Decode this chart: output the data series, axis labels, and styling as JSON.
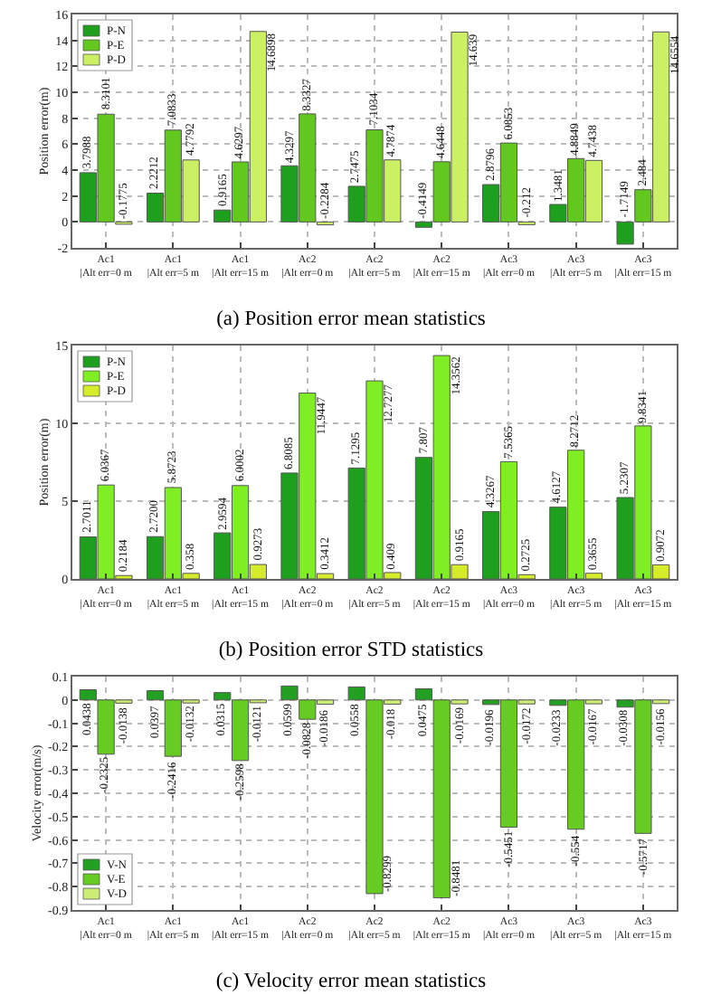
{
  "chart_data": [
    {
      "type": "bar",
      "title": "(a) Position error mean statistics",
      "ylabel": "Position error(m)",
      "categories": [
        "Ac1\n|Alt err=0 m",
        "Ac1\n|Alt err=5 m",
        "Ac1\n|Alt err=15 m",
        "Ac2\n|Alt err=0 m",
        "Ac2\n|Alt err=5 m",
        "Ac2\n|Alt err=15 m",
        "Ac3\n|Alt err=0 m",
        "Ac3\n|Alt err=5 m",
        "Ac3\n|Alt err=15 m"
      ],
      "ylim": [
        -2,
        16
      ],
      "yticks": [
        -2,
        0,
        2,
        4,
        6,
        8,
        10,
        12,
        14,
        16
      ],
      "grid": true,
      "legend": "top left",
      "series": [
        {
          "name": "P-N",
          "color": "#1ea01e",
          "values": [
            3.7988,
            2.2212,
            0.9165,
            4.3297,
            2.7475,
            -0.4149,
            2.8796,
            1.3481,
            -1.7149
          ],
          "value_labels": [
            "3.7988",
            "2.2212",
            "0.9165",
            "4.3297",
            "2.7475",
            "-0.4149",
            "2.8796",
            "1.3481",
            "-1.7149"
          ]
        },
        {
          "name": "P-E",
          "color": "#62c81e",
          "values": [
            8.3101,
            7.0833,
            4.6297,
            8.3327,
            7.1034,
            4.6448,
            6.0853,
            4.8849,
            2.484
          ],
          "value_labels": [
            "8.3101",
            "7.0833",
            "4.6297",
            "8.3327",
            "7.1034",
            "4.6448",
            "6.0853",
            "4.8849",
            "2.484"
          ]
        },
        {
          "name": "P-D",
          "color": "#ccf064",
          "values": [
            -0.1775,
            4.7792,
            14.6898,
            -0.2284,
            4.7874,
            14.639,
            -0.212,
            4.7438,
            14.6554
          ],
          "value_labels": [
            "-0.1775",
            "4.7792",
            "14.6898",
            "-0.2284",
            "4.7874",
            "14.639",
            "-0.212",
            "4.7438",
            "14.6554"
          ]
        }
      ]
    },
    {
      "type": "bar",
      "title": "(b) Position error STD statistics",
      "ylabel": "Position error(m)",
      "categories": [
        "Ac1\n|Alt err=0 m",
        "Ac1\n|Alt err=5 m",
        "Ac1\n|Alt err=15 m",
        "Ac2\n|Alt err=0 m",
        "Ac2\n|Alt err=5 m",
        "Ac2\n|Alt err=15 m",
        "Ac3\n|Alt err=0 m",
        "Ac3\n|Alt err=5 m",
        "Ac3\n|Alt err=15 m"
      ],
      "ylim": [
        0,
        15
      ],
      "yticks": [
        0,
        5,
        10,
        15
      ],
      "grid": true,
      "legend": "top left",
      "series": [
        {
          "name": "P-N",
          "color": "#1ea01e",
          "values": [
            2.7011,
            2.72,
            2.9594,
            6.8085,
            7.1295,
            7.807,
            4.3267,
            4.6127,
            5.2307
          ],
          "value_labels": [
            "2.7011",
            "2.7200",
            "2.9594",
            "6.8085",
            "7.1295",
            "7.807",
            "4.3267",
            "4.6127",
            "5.2307"
          ]
        },
        {
          "name": "P-E",
          "color": "#7fee22",
          "values": [
            6.0367,
            5.8723,
            6.0002,
            11.9447,
            12.7277,
            14.3562,
            7.5365,
            8.2712,
            9.8341
          ],
          "value_labels": [
            "6.0367",
            "5.8723",
            "6.0002",
            "11.9447",
            "12.7277",
            "14.3562",
            "7.5365",
            "8.2712",
            "9.8341"
          ]
        },
        {
          "name": "P-D",
          "color": "#d4ec2a",
          "values": [
            0.2184,
            0.358,
            0.9273,
            0.3412,
            0.409,
            0.9165,
            0.2725,
            0.3655,
            0.9072
          ],
          "value_labels": [
            "0.2184",
            "0.358",
            "0.9273",
            "0.3412",
            "0.409",
            "0.9165",
            "0.2725",
            "0.3655",
            "0.9072"
          ]
        }
      ]
    },
    {
      "type": "bar",
      "title": "(c) Velocity error mean statistics",
      "ylabel": "Velocity error(m/s)",
      "categories": [
        "Ac1\n|Alt err=0 m",
        "Ac1\n|Alt err=5 m",
        "Ac1\n|Alt err=15 m",
        "Ac2\n|Alt err=0 m",
        "Ac2\n|Alt err=5 m",
        "Ac2\n|Alt err=15 m",
        "Ac3\n|Alt err=0 m",
        "Ac3\n|Alt err=5 m",
        "Ac3\n|Alt err=15 m"
      ],
      "ylim": [
        -0.9,
        0.1
      ],
      "yticks": [
        -0.9,
        -0.8,
        -0.7,
        -0.6,
        -0.5,
        -0.4,
        -0.3,
        -0.2,
        -0.1,
        0,
        0.1
      ],
      "grid": true,
      "legend": "bottom left",
      "series": [
        {
          "name": "V-N",
          "color": "#22a022",
          "values": [
            0.0438,
            0.0397,
            0.0315,
            0.0599,
            0.0558,
            0.0475,
            -0.0196,
            -0.0233,
            -0.0308
          ],
          "value_labels": [
            "0.0438",
            "0.0397",
            "0.0315",
            "0.0599",
            "0.0558",
            "0.0475",
            "-0.0196",
            "-0.0233",
            "-0.0308"
          ]
        },
        {
          "name": "V-E",
          "color": "#66cc22",
          "values": [
            -0.2325,
            -0.2416,
            -0.2598,
            -0.0828,
            -0.8299,
            -0.8481,
            -0.5451,
            -0.554,
            -0.5717
          ],
          "value_labels": [
            "-0.2325",
            "-0.2416",
            "-0.2598",
            "-0.0828",
            "-0.8299",
            "-0.8481",
            "-0.5451",
            "-0.554",
            "-0.5717"
          ]
        },
        {
          "name": "V-D",
          "color": "#ccee77",
          "values": [
            -0.0138,
            -0.0132,
            -0.0121,
            -0.0186,
            -0.018,
            -0.0169,
            -0.0172,
            -0.0167,
            -0.0156
          ],
          "value_labels": [
            "-0.0138",
            "-0.0132",
            "-0.0121",
            "-0.0186",
            "-0.018",
            "-0.0169",
            "-0.0172",
            "-0.0167",
            "-0.0156"
          ]
        }
      ]
    }
  ]
}
